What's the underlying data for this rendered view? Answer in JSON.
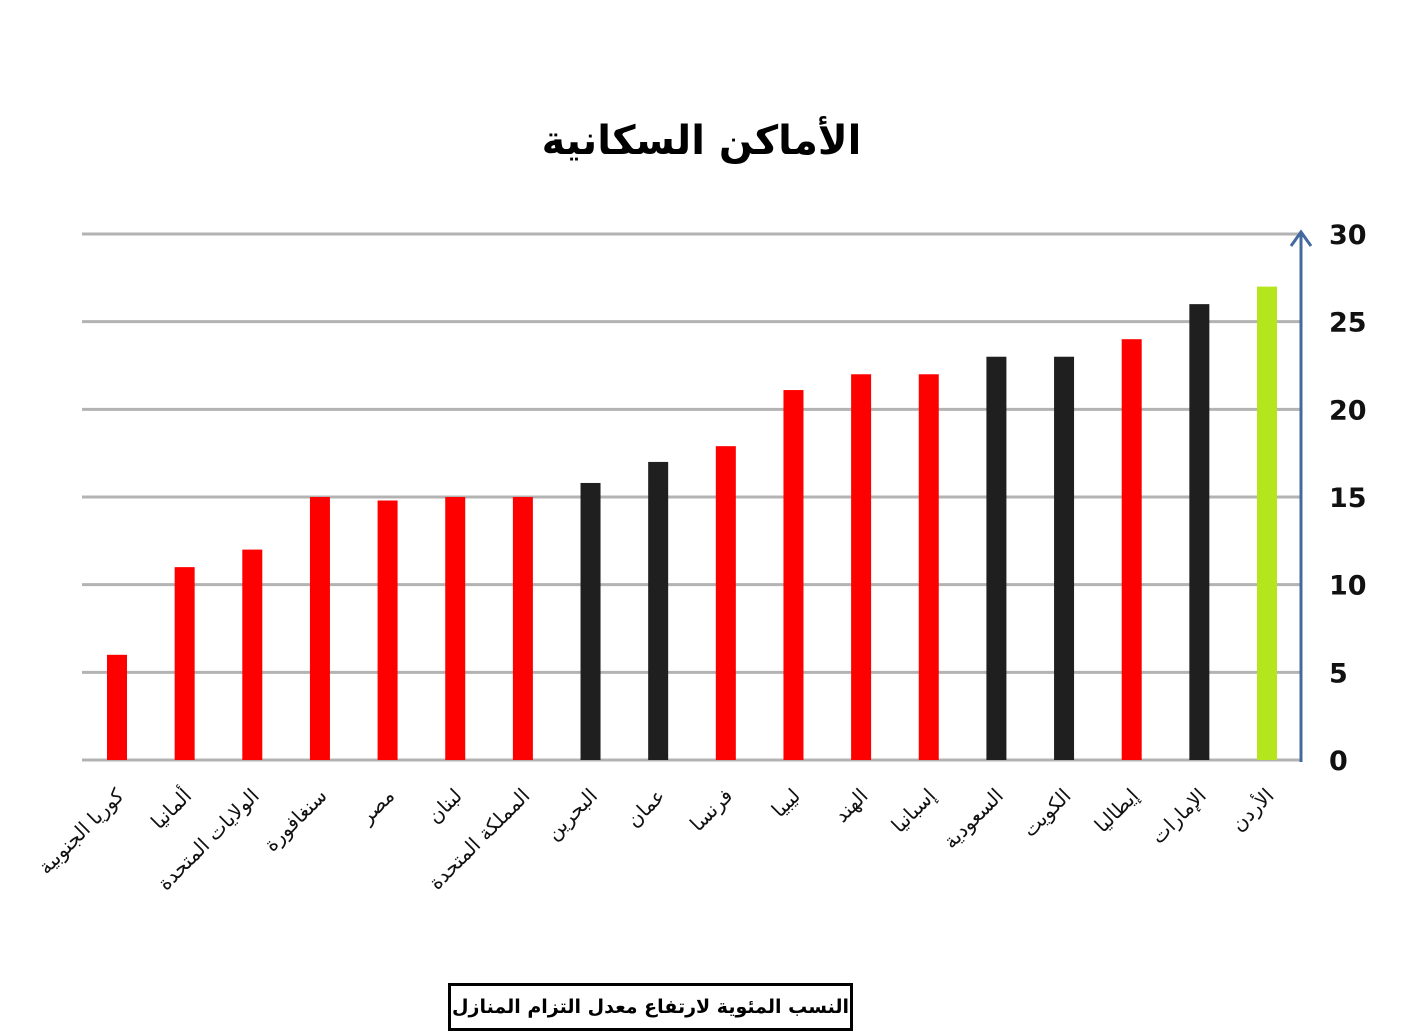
{
  "chart_data": {
    "type": "bar",
    "title": "الأماكن السكانية",
    "xlabel": "",
    "ylabel": "",
    "ylim": [
      0,
      30
    ],
    "yticks": [
      0,
      5,
      10,
      15,
      20,
      25,
      30
    ],
    "grid": true,
    "y_axis_position": "right",
    "categories": [
      "كوريا الجنوبية",
      "ألمانيا",
      "الولايات المتحدة",
      "سنغافورة",
      "مصر",
      "لبنان",
      "المملكة المتحدة",
      "البحرين",
      "عمان",
      "فرنسا",
      "ليبيا",
      "الهند",
      "إسبانيا",
      "السعودية",
      "الكويت",
      "إيطاليا",
      "الإمارات",
      "الأردن"
    ],
    "values": [
      6,
      11,
      12,
      15,
      14.8,
      15,
      15,
      15.8,
      17,
      17.9,
      21.1,
      22,
      22,
      23,
      23,
      24,
      26,
      27
    ],
    "bar_colors": [
      "#ff0000",
      "#ff0000",
      "#ff0000",
      "#ff0000",
      "#ff0000",
      "#ff0000",
      "#ff0000",
      "#1f1f1f",
      "#1f1f1f",
      "#ff0000",
      "#ff0000",
      "#ff0000",
      "#ff0000",
      "#1f1f1f",
      "#1f1f1f",
      "#ff0000",
      "#1f1f1f",
      "#b5e61d"
    ],
    "note": "النسب المئوية لارتفاع معدل التزام المنازل"
  },
  "colors": {
    "grid": "#b3b3b3",
    "axis": "#44699e"
  }
}
